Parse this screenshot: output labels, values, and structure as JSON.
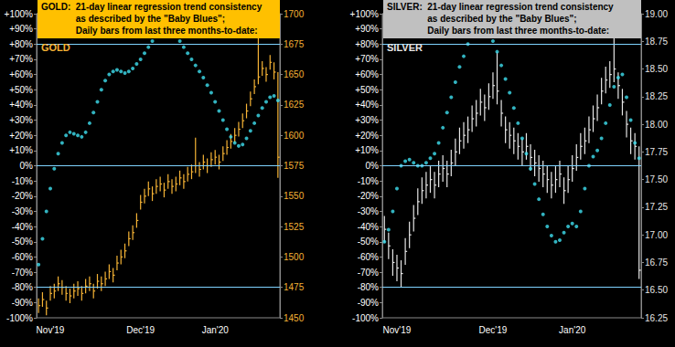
{
  "chart_data": [
    {
      "type": "ohlc",
      "title": [
        "GOLD:  21-day linear regression trend consistency",
        "as described by the \"Baby Blues\";",
        "Daily bars from last three months-to-date:"
      ],
      "annotation": "GOLD",
      "categories": [
        null,
        null,
        null,
        "Nov'19",
        null,
        null,
        null,
        null,
        null,
        null,
        null,
        null,
        null,
        null,
        null,
        null,
        null,
        null,
        null,
        null,
        null,
        null,
        null,
        null,
        null,
        null,
        "Dec'19",
        null,
        null,
        null,
        null,
        null,
        null,
        null,
        null,
        null,
        null,
        null,
        null,
        null,
        null,
        null,
        null,
        null,
        null,
        "Jan'20",
        null,
        null,
        null,
        null,
        null,
        null,
        null,
        null,
        null,
        null,
        null,
        null,
        null,
        null,
        null,
        null
      ],
      "series": [
        {
          "axis": "y2",
          "color": "#f5b335",
          "low": [
            1454,
            1459,
            1452,
            1464,
            1466,
            1472,
            1469,
            1464,
            1462,
            1466,
            1468,
            1464,
            1470,
            1472,
            1466,
            1474,
            1472,
            1476,
            1482,
            1479,
            1489,
            1494,
            1499,
            1509,
            1514,
            1524,
            1539,
            1544,
            1550,
            1546,
            1552,
            1554,
            1549,
            1556,
            1552,
            1554,
            1559,
            1556,
            1562,
            1564,
            1569,
            1566,
            1572,
            1569,
            1574,
            1576,
            1572,
            1579,
            1584,
            1589,
            1594,
            1599,
            1606,
            1614,
            1624,
            1634,
            1642,
            1649,
            1644,
            1654,
            1646,
            1565
          ],
          "high": [
            1466,
            1471,
            1464,
            1476,
            1478,
            1484,
            1481,
            1476,
            1474,
            1478,
            1480,
            1476,
            1482,
            1484,
            1478,
            1486,
            1484,
            1488,
            1494,
            1491,
            1501,
            1506,
            1511,
            1521,
            1526,
            1536,
            1551,
            1556,
            1562,
            1558,
            1564,
            1566,
            1561,
            1568,
            1564,
            1566,
            1571,
            1568,
            1574,
            1576,
            1598,
            1578,
            1584,
            1581,
            1586,
            1588,
            1584,
            1591,
            1596,
            1601,
            1606,
            1611,
            1618,
            1626,
            1636,
            1646,
            1690,
            1661,
            1656,
            1666,
            1660,
            1652
          ],
          "close": [
            1460,
            1465,
            1458,
            1470,
            1472,
            1478,
            1475,
            1470,
            1468,
            1472,
            1474,
            1470,
            1476,
            1478,
            1472,
            1480,
            1478,
            1482,
            1488,
            1485,
            1495,
            1500,
            1505,
            1515,
            1520,
            1530,
            1545,
            1550,
            1556,
            1552,
            1558,
            1560,
            1555,
            1562,
            1558,
            1560,
            1565,
            1562,
            1568,
            1570,
            1575,
            1572,
            1578,
            1575,
            1580,
            1582,
            1578,
            1585,
            1590,
            1595,
            1600,
            1605,
            1612,
            1620,
            1630,
            1640,
            1648,
            1655,
            1650,
            1660,
            1652,
            1582
          ]
        },
        {
          "type": "scatter",
          "color": "#3fe0f0",
          "marker": "circle",
          "values": [
            -65,
            -48,
            -30,
            -15,
            -2,
            8,
            15,
            20,
            22,
            21,
            20,
            19,
            22,
            28,
            35,
            42,
            50,
            56,
            60,
            62,
            63,
            62,
            61,
            62,
            64,
            67,
            70,
            74,
            78,
            82,
            85,
            87,
            88,
            88,
            87,
            85,
            82,
            78,
            74,
            70,
            66,
            62,
            58,
            53,
            48,
            42,
            36,
            30,
            24,
            19,
            15,
            13,
            14,
            18,
            23,
            28,
            33,
            38,
            42,
            45,
            46,
            43
          ]
        }
      ],
      "ylim": [
        -100,
        100
      ],
      "yticks": [
        {
          "value": -100,
          "label": "-100%"
        },
        {
          "value": -90,
          "label": "-90%"
        },
        {
          "value": -80,
          "label": "-80%"
        },
        {
          "value": -70,
          "label": "-70%"
        },
        {
          "value": -60,
          "label": "-60%"
        },
        {
          "value": -50,
          "label": "-50%"
        },
        {
          "value": -40,
          "label": "-40%"
        },
        {
          "value": -30,
          "label": "-30%"
        },
        {
          "value": -20,
          "label": "-20%"
        },
        {
          "value": -10,
          "label": "-10%"
        },
        {
          "value": 0,
          "label": "0%"
        },
        {
          "value": 10,
          "label": "+10%"
        },
        {
          "value": 20,
          "label": "+20%"
        },
        {
          "value": 30,
          "label": "+30%"
        },
        {
          "value": 40,
          "label": "+40%"
        },
        {
          "value": 50,
          "label": "+50%"
        },
        {
          "value": 60,
          "label": "+60%"
        },
        {
          "value": 70,
          "label": "+70%"
        },
        {
          "value": 80,
          "label": "+80%"
        },
        {
          "value": 90,
          "label": "+90%"
        },
        {
          "value": 100,
          "label": "+100%"
        }
      ],
      "y2lim": [
        1450,
        1700
      ],
      "y2ticks": [
        1450,
        1475,
        1500,
        1525,
        1550,
        1575,
        1600,
        1625,
        1650,
        1675,
        1700
      ],
      "reference_lines": [
        80,
        0,
        -80
      ]
    },
    {
      "type": "ohlc",
      "title": [
        "SILVER:  21-day linear regression trend consistency",
        "as described by the \"Baby Blues\";",
        "Daily bars from last three months-to-date:"
      ],
      "annotation": "SILVER",
      "categories": [
        null,
        null,
        null,
        "Nov'19",
        null,
        null,
        null,
        null,
        null,
        null,
        null,
        null,
        null,
        null,
        null,
        null,
        null,
        null,
        null,
        null,
        null,
        null,
        null,
        null,
        null,
        null,
        "Dec'19",
        null,
        null,
        null,
        null,
        null,
        null,
        null,
        null,
        null,
        null,
        null,
        null,
        null,
        null,
        null,
        null,
        null,
        null,
        "Jan'20",
        null,
        null,
        null,
        null,
        null,
        null,
        null,
        null,
        null,
        null,
        null,
        null,
        null,
        null,
        null,
        null
      ],
      "series": [
        {
          "axis": "y2",
          "color": "#e6e6e6",
          "low": [
            16.93,
            16.78,
            16.63,
            16.58,
            16.53,
            16.73,
            16.88,
            17.03,
            17.18,
            17.28,
            17.33,
            17.38,
            17.33,
            17.43,
            17.48,
            17.43,
            17.53,
            17.63,
            17.73,
            17.78,
            17.83,
            17.93,
            17.98,
            18.08,
            18.03,
            18.13,
            18.23,
            18.18,
            17.98,
            17.83,
            17.78,
            17.73,
            17.68,
            17.63,
            17.68,
            17.58,
            17.53,
            17.48,
            17.43,
            17.38,
            17.33,
            17.38,
            17.43,
            17.28,
            17.38,
            17.48,
            17.58,
            17.68,
            17.73,
            17.83,
            17.93,
            18.03,
            18.18,
            18.28,
            18.33,
            18.38,
            18.23,
            18.08,
            17.88,
            17.73,
            17.68,
            16.6
          ],
          "high": [
            17.17,
            17.02,
            16.87,
            16.82,
            16.77,
            16.97,
            17.12,
            17.27,
            17.42,
            17.52,
            17.57,
            17.62,
            17.57,
            17.67,
            17.72,
            17.67,
            17.77,
            17.87,
            17.97,
            18.02,
            18.07,
            18.17,
            18.22,
            18.32,
            18.27,
            18.37,
            18.47,
            18.65,
            18.22,
            18.07,
            18.02,
            17.97,
            17.92,
            17.87,
            17.92,
            17.82,
            17.77,
            17.72,
            17.67,
            17.62,
            17.57,
            17.62,
            17.67,
            17.52,
            17.62,
            17.72,
            17.82,
            17.92,
            17.97,
            18.07,
            18.17,
            18.27,
            18.42,
            18.52,
            18.57,
            18.9,
            18.47,
            18.32,
            18.12,
            17.97,
            17.92,
            17.8
          ],
          "close": [
            17.05,
            16.9,
            16.75,
            16.7,
            16.65,
            16.85,
            17.0,
            17.15,
            17.3,
            17.4,
            17.45,
            17.5,
            17.45,
            17.55,
            17.6,
            17.55,
            17.65,
            17.75,
            17.85,
            17.9,
            17.95,
            18.05,
            18.1,
            18.2,
            18.15,
            18.25,
            18.35,
            18.3,
            18.1,
            17.95,
            17.9,
            17.85,
            17.8,
            17.75,
            17.8,
            17.7,
            17.65,
            17.6,
            17.55,
            17.5,
            17.45,
            17.5,
            17.55,
            17.4,
            17.5,
            17.6,
            17.7,
            17.8,
            17.85,
            17.95,
            18.05,
            18.15,
            18.3,
            18.4,
            18.45,
            18.5,
            18.35,
            18.2,
            18.0,
            17.85,
            17.8,
            16.68
          ]
        },
        {
          "type": "scatter",
          "color": "#3fe0f0",
          "marker": "circle",
          "values": [
            -50,
            -42,
            -30,
            -15,
            0,
            3,
            4,
            2,
            0,
            0,
            2,
            5,
            8,
            15,
            25,
            35,
            45,
            55,
            65,
            72,
            80,
            86,
            90,
            93,
            92,
            88,
            82,
            75,
            66,
            57,
            48,
            38,
            28,
            18,
            8,
            -2,
            -12,
            -22,
            -32,
            -40,
            -46,
            -50,
            -49,
            -44,
            -40,
            -38,
            -40,
            -30,
            -15,
            0,
            6,
            10,
            18,
            28,
            40,
            52,
            58,
            60,
            45,
            30,
            15,
            5
          ]
        }
      ],
      "ylim": [
        -100,
        100
      ],
      "yticks": [
        {
          "value": -100,
          "label": "-100%"
        },
        {
          "value": -90,
          "label": "-90%"
        },
        {
          "value": -80,
          "label": "-80%"
        },
        {
          "value": -70,
          "label": "-70%"
        },
        {
          "value": -60,
          "label": "-60%"
        },
        {
          "value": -50,
          "label": "-50%"
        },
        {
          "value": -40,
          "label": "-40%"
        },
        {
          "value": -30,
          "label": "-30%"
        },
        {
          "value": -20,
          "label": "-20%"
        },
        {
          "value": -10,
          "label": "-10%"
        },
        {
          "value": 0,
          "label": "0%"
        },
        {
          "value": 10,
          "label": "+10%"
        },
        {
          "value": 20,
          "label": "+20%"
        },
        {
          "value": 30,
          "label": "+30%"
        },
        {
          "value": 40,
          "label": "+40%"
        },
        {
          "value": 50,
          "label": "+50%"
        },
        {
          "value": 60,
          "label": "+60%"
        },
        {
          "value": 70,
          "label": "+70%"
        },
        {
          "value": 80,
          "label": "+80%"
        },
        {
          "value": 90,
          "label": "+90%"
        },
        {
          "value": 100,
          "label": "+100%"
        }
      ],
      "y2lim": [
        16.25,
        19.0
      ],
      "y2ticks": [
        16.25,
        {
          "value": 16.5,
          "label": "16.50"
        },
        16.75,
        {
          "value": 17,
          "label": "17.00"
        },
        17.25,
        {
          "value": 17.5,
          "label": "17.50"
        },
        17.75,
        {
          "value": 18,
          "label": "18.00"
        },
        18.25,
        {
          "value": 18.5,
          "label": "18.50"
        },
        18.75,
        {
          "value": 19,
          "label": "19.00"
        }
      ],
      "reference_lines": [
        80,
        0,
        -80
      ]
    }
  ]
}
